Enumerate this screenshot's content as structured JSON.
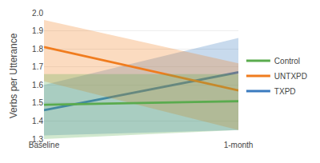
{
  "chart_data": {
    "type": "line",
    "categories": [
      "Baseline",
      "1-month"
    ],
    "ylabel": "Verbs per Utterance",
    "ylim": [
      1.3,
      2.0
    ],
    "yticks": [
      1.3,
      1.4,
      1.5,
      1.6,
      1.7,
      1.8,
      1.9,
      {
        "value": 2.0,
        "label": "2.0"
      }
    ],
    "grid": true,
    "legend": "right",
    "series": [
      {
        "name": "TXPD",
        "color": "#3a7bbf",
        "values": [
          1.46,
          1.67
        ],
        "lower": [
          1.32,
          1.35
        ],
        "upper": [
          1.6,
          1.86
        ]
      },
      {
        "name": "UNTXPD",
        "color": "#f07c1e",
        "values": [
          1.81,
          1.57
        ],
        "lower": [
          1.62,
          1.35
        ],
        "upper": [
          1.96,
          1.72
        ]
      },
      {
        "name": "Control",
        "color": "#5aab4e",
        "values": [
          1.49,
          1.51
        ],
        "lower": [
          1.3,
          1.35
        ],
        "upper": [
          1.66,
          1.66
        ]
      }
    ]
  }
}
